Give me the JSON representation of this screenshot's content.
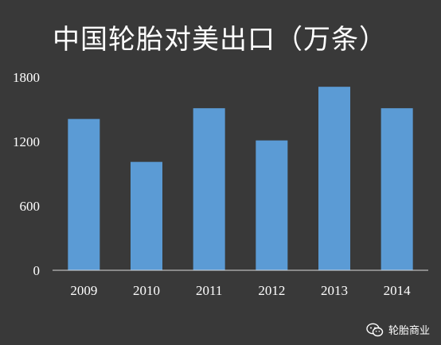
{
  "chart_data": {
    "type": "bar",
    "title": "中国轮胎对美出口（万条）",
    "categories": [
      "2009",
      "2010",
      "2011",
      "2012",
      "2013",
      "2014"
    ],
    "values": [
      1410,
      1010,
      1510,
      1210,
      1710,
      1510
    ],
    "yticks": [
      0,
      600,
      1200,
      1800
    ],
    "ylim": [
      0,
      1800
    ],
    "xlabel": "",
    "ylabel": "",
    "grid": false,
    "colors": {
      "bar": "#5b9bd5",
      "background": "#393939",
      "text": "#ffffff",
      "axis": "#d9d9d9"
    }
  },
  "watermark": {
    "icon": "wechat-icon",
    "label": "轮胎商业"
  }
}
